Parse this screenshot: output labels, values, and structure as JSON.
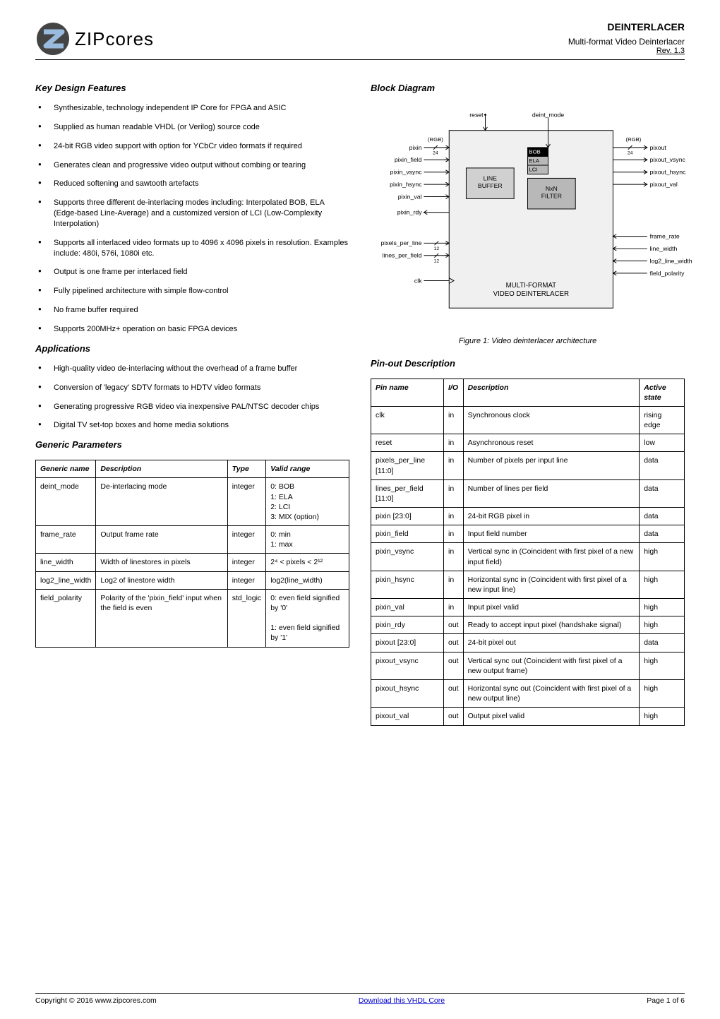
{
  "header": {
    "logo_text": "ZIPcores",
    "title": "DEINTERLACER",
    "subtitle": "Multi-format Video Deinterlacer",
    "rev": "Rev. 1.3"
  },
  "left": {
    "features_title": "Key Design Features",
    "features": [
      "Synthesizable, technology independent IP Core for FPGA and ASIC",
      "Supplied as human readable VHDL (or Verilog) source code",
      "24-bit RGB video support with option for YCbCr video formats if required",
      "Generates clean and progressive video output without combing or tearing",
      "Reduced softening and sawtooth artefacts",
      "Supports three different de-interlacing modes including: Interpolated BOB, ELA (Edge-based Line-Average) and a customized version of LCI (Low-Complexity Interpolation)",
      "Supports all interlaced video formats up to 4096 x 4096 pixels in resolution.  Examples include: 480i, 576i, 1080i etc.",
      "Output is one frame per interlaced field",
      "Fully pipelined architecture with simple flow-control",
      "No frame buffer required",
      "Supports 200MHz+ operation on basic FPGA devices"
    ],
    "apps_title": "Applications",
    "apps": [
      "High-quality video de-interlacing without the overhead of a frame buffer",
      "Conversion of 'legacy' SDTV formats to HDTV video formats",
      "Generating progressive RGB video via inexpensive PAL/NTSC decoder chips",
      "Digital TV set-top boxes and home media solutions"
    ],
    "gen_title": "Generic Parameters",
    "gen_headers": [
      "Generic name",
      "Description",
      "Type",
      "Valid range"
    ],
    "gen_rows": [
      [
        "deint_mode",
        "De-interlacing mode",
        "integer",
        "0: BOB\n1: ELA\n2: LCI\n3: MIX (option)"
      ],
      [
        "frame_rate",
        "Output frame rate",
        "integer",
        "0: min\n1: max"
      ],
      [
        "line_width",
        "Width of linestores in pixels",
        "integer",
        "2⁴ < pixels < 2¹²"
      ],
      [
        "log2_line_width",
        "Log2 of linestore width",
        "integer",
        "log2(line_width)"
      ],
      [
        "field_polarity",
        "Polarity of the 'pixin_field' input when the field is even",
        "std_logic",
        "0: even field signified by '0'\n\n1: even field signified by '1'"
      ]
    ]
  },
  "right": {
    "diag_title": "Block Diagram",
    "diag_caption": "Figure 1: Video deinterlacer architecture",
    "diagram": {
      "colors": {
        "stroke": "#000000",
        "fill_block": "#d0d0d0",
        "fill_filter": "#b8b8b8",
        "fill_bg": "#f0f0f0",
        "text": "#000000",
        "bob": "#000000",
        "label": "#000000"
      },
      "labels": {
        "reset": "reset",
        "deint_mode": "deint_mode",
        "pixin": "pixin",
        "rgb_l": "(RGB)",
        "rgb_r": "(RGB)",
        "pixin_field": "pixin_field",
        "pixin_vsync": "pixin_vsync",
        "pixin_hsync": "pixin_hsync",
        "pixin_val": "pixin_val",
        "pixin_rdy": "pixin_rdy",
        "pixels_per_line": "pixels_per_line",
        "lines_per_field": "lines_per_field",
        "clk": "clk",
        "pixout": "pixout",
        "pixout_vsync": "pixout_vsync",
        "pixout_hsync": "pixout_hsync",
        "pixout_val": "pixout_val",
        "frame_rate": "frame_rate",
        "line_width": "line_width",
        "log2_line_width": "log2_line_width",
        "field_polarity": "field_polarity",
        "line_buffer": "LINE\nBUFFER",
        "filter": "NxN\nFILTER",
        "bob": "BOB",
        "ela": "ELA",
        "lci": "LCI",
        "main": "MULTI-FORMAT\nVIDEO DEINTERLACER",
        "bus24": "24",
        "bus12": "12"
      }
    },
    "pin_title": "Pin-out Description",
    "pin_headers": [
      "Pin name",
      "I/O",
      "Description",
      "Active state"
    ],
    "pin_rows": [
      [
        "clk",
        "in",
        "Synchronous clock",
        "rising edge"
      ],
      [
        "reset",
        "in",
        "Asynchronous reset",
        "low"
      ],
      [
        "pixels_per_line [11:0]",
        "in",
        "Number of pixels per input line",
        "data"
      ],
      [
        "lines_per_field [11:0]",
        "in",
        "Number of lines per field",
        "data"
      ],
      [
        "pixin [23:0]",
        "in",
        "24-bit RGB pixel in",
        "data"
      ],
      [
        "pixin_field",
        "in",
        "Input field number",
        "data"
      ],
      [
        "pixin_vsync",
        "in",
        "Vertical sync in (Coincident with first pixel of a new input field)",
        "high"
      ],
      [
        "pixin_hsync",
        "in",
        "Horizontal sync in (Coincident with first pixel of a new input line)",
        "high"
      ],
      [
        "pixin_val",
        "in",
        "Input pixel valid",
        "high"
      ],
      [
        "pixin_rdy",
        "out",
        "Ready to accept input pixel (handshake signal)",
        "high"
      ],
      [
        "pixout [23:0]",
        "out",
        "24-bit pixel out",
        "data"
      ],
      [
        "pixout_vsync",
        "out",
        "Vertical sync out (Coincident with first pixel of a new  output frame)",
        "high"
      ],
      [
        "pixout_hsync",
        "out",
        "Horizontal sync out (Coincident with first pixel of a new output line)",
        "high"
      ],
      [
        "pixout_val",
        "out",
        "Output pixel valid",
        "high"
      ]
    ]
  },
  "footer": {
    "copyright": "Copyright © 2016 www.zipcores.com",
    "link_text": "Download this VHDL Core",
    "page": "Page 1 of 6"
  }
}
